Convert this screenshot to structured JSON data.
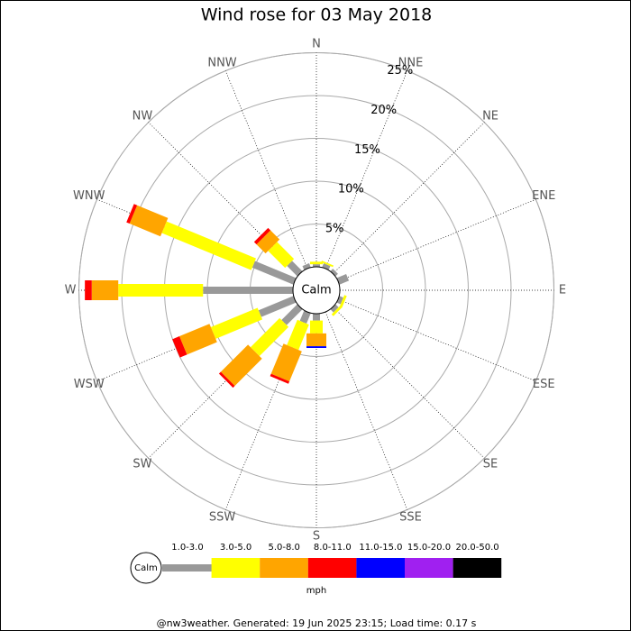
{
  "chart_data": {
    "type": "windrose",
    "title": "Wind rose for 03 May 2018",
    "categories": [
      "N",
      "NNE",
      "NE",
      "ENE",
      "E",
      "ESE",
      "SE",
      "SSE",
      "S",
      "SSW",
      "SW",
      "WSW",
      "W",
      "WNW",
      "NW",
      "NNW"
    ],
    "series": [
      {
        "name": "1.0-3.0",
        "color": "#999999",
        "values": [
          0.3,
          0.5,
          0.4,
          1.2,
          0,
          0.5,
          0.5,
          0,
          0.8,
          1.3,
          2.6,
          4.4,
          10.5,
          5.2,
          1.7,
          0.5
        ]
      },
      {
        "name": "3.0-5.0",
        "color": "#ffff00",
        "values": [
          0.3,
          0.2,
          0,
          0,
          0,
          0.3,
          0.3,
          0,
          1.5,
          3.2,
          4.8,
          5.9,
          9.9,
          11.3,
          2.8,
          0
        ]
      },
      {
        "name": "5.0-8.0",
        "color": "#ffa500",
        "values": [
          0,
          0,
          0,
          0,
          0,
          0,
          0,
          0,
          1.5,
          3.8,
          4.5,
          3.8,
          3.1,
          3.9,
          1.5,
          0
        ]
      },
      {
        "name": "8.0-11.0",
        "color": "#ff0000",
        "values": [
          0,
          0,
          0,
          0,
          0,
          0,
          0,
          0,
          0,
          0.3,
          0.3,
          0.9,
          0.8,
          0.4,
          0.4,
          0
        ]
      },
      {
        "name": "11.0-15.0",
        "color": "#0000ff",
        "values": [
          0,
          0,
          0,
          0,
          0,
          0,
          0,
          0,
          0.2,
          0,
          0,
          0,
          0,
          0,
          0,
          0
        ]
      },
      {
        "name": "15.0-20.0",
        "color": "#a020f0",
        "values": [
          0,
          0,
          0,
          0,
          0,
          0,
          0,
          0,
          0,
          0,
          0,
          0,
          0,
          0,
          0,
          0
        ]
      },
      {
        "name": "20.0-50.0",
        "color": "#000000",
        "values": [
          0,
          0,
          0,
          0,
          0,
          0,
          0,
          0,
          0,
          0,
          0,
          0,
          0,
          0,
          0,
          0
        ]
      }
    ],
    "rlim": [
      0,
      25
    ],
    "rticks": [
      {
        "value": 5,
        "label": "5%"
      },
      {
        "value": 10,
        "label": "10%"
      },
      {
        "value": 15,
        "label": "15%"
      },
      {
        "value": 20,
        "label": "20%"
      },
      {
        "value": 25,
        "label": "25%"
      }
    ],
    "calm_label": "Calm",
    "legend_units": "mph",
    "footer": "@nw3weather. Generated: 19 Jun 2025 23:15; Load time: 0.17 s"
  }
}
